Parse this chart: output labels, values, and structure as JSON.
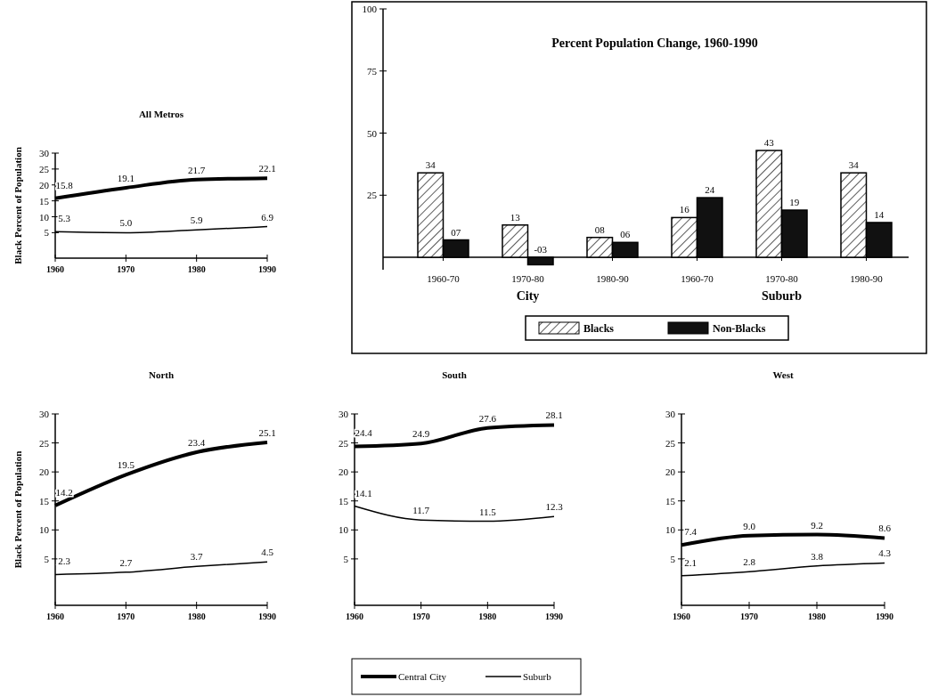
{
  "chart_data": [
    {
      "type": "line",
      "title": "All Metros",
      "ylabel": "Black Percent of Population",
      "x": [
        1960,
        1970,
        1980,
        1990
      ],
      "xlim": [
        1960,
        1990
      ],
      "xticks": [
        1960,
        1970,
        1980,
        1990
      ],
      "ylim": [
        -3,
        30
      ],
      "yticks": [
        5,
        10,
        15,
        20,
        25,
        30
      ],
      "grid": false,
      "legend": false,
      "marker": "none",
      "series": [
        {
          "color": "#000000",
          "values": [
            15.8,
            19.1,
            21.7,
            22.1
          ],
          "value_labels": [
            "15.8",
            "19.1",
            "21.7",
            "22.1"
          ]
        },
        {
          "color": "#000000",
          "values": [
            5.3,
            5.0,
            5.9,
            6.9
          ],
          "value_labels": [
            "5.3",
            "5.0",
            "5.9",
            "6.9"
          ]
        }
      ]
    },
    {
      "type": "bar",
      "title": "Percent Population Change, 1960-1990",
      "categories": [
        "1960-70",
        "1970-80",
        "1980-90",
        "1960-70",
        "1970-80",
        "1980-90"
      ],
      "annotations": [
        "City",
        "Suburb"
      ],
      "ylim": [
        -5,
        100
      ],
      "yticks": [
        25,
        50,
        75,
        100
      ],
      "grid": false,
      "legend": "bottom",
      "series": [
        {
          "name": "Blacks",
          "color": "#ffffff",
          "values": [
            34,
            13,
            8,
            16,
            43,
            34
          ],
          "value_labels": [
            "34",
            "13",
            "08",
            "16",
            "43",
            "34"
          ]
        },
        {
          "name": "Non-Blacks",
          "color": "#111111",
          "values": [
            7,
            -3,
            6,
            24,
            19,
            14
          ],
          "value_labels": [
            "07",
            "-03",
            "06",
            "24",
            "19",
            "14"
          ]
        }
      ]
    },
    {
      "type": "line",
      "title": "North",
      "ylabel": "Black Percent of Population",
      "x": [
        1960,
        1970,
        1980,
        1990
      ],
      "xlim": [
        1960,
        1990
      ],
      "xticks": [
        1960,
        1970,
        1980,
        1990
      ],
      "ylim": [
        -3,
        30
      ],
      "yticks": [
        5,
        10,
        15,
        20,
        25,
        30
      ],
      "grid": false,
      "legend": false,
      "marker": "none",
      "series": [
        {
          "color": "#000000",
          "values": [
            14.2,
            19.5,
            23.4,
            25.1
          ],
          "value_labels": [
            "14.2",
            "19.5",
            "23.4",
            "25.1"
          ]
        },
        {
          "color": "#000000",
          "values": [
            2.3,
            2.7,
            3.7,
            4.5
          ],
          "value_labels": [
            "2.3",
            "2.7",
            "3.7",
            "4.5"
          ]
        }
      ]
    },
    {
      "type": "line",
      "title": "South",
      "x": [
        1960,
        1970,
        1980,
        1990
      ],
      "xlim": [
        1960,
        1990
      ],
      "xticks": [
        1960,
        1970,
        1980,
        1990
      ],
      "ylim": [
        -3,
        30
      ],
      "yticks": [
        5,
        10,
        15,
        20,
        25,
        30
      ],
      "grid": false,
      "legend": "bottom",
      "marker": "none",
      "series": [
        {
          "name": "Central City",
          "color": "#000000",
          "values": [
            24.4,
            24.9,
            27.6,
            28.1
          ],
          "value_labels": [
            "24.4",
            "24.9",
            "27.6",
            "28.1"
          ]
        },
        {
          "name": "Suburb",
          "color": "#000000",
          "values": [
            14.1,
            11.7,
            11.5,
            12.3
          ],
          "value_labels": [
            "14.1",
            "11.7",
            "11.5",
            "12.3"
          ]
        }
      ]
    },
    {
      "type": "line",
      "title": "West",
      "x": [
        1960,
        1970,
        1980,
        1990
      ],
      "xlim": [
        1960,
        1990
      ],
      "xticks": [
        1960,
        1970,
        1980,
        1990
      ],
      "ylim": [
        -3,
        30
      ],
      "yticks": [
        5,
        10,
        15,
        20,
        25,
        30
      ],
      "grid": false,
      "legend": false,
      "marker": "none",
      "series": [
        {
          "color": "#000000",
          "values": [
            7.4,
            9.0,
            9.2,
            8.6
          ],
          "value_labels": [
            "7.4",
            "9.0",
            "9.2",
            "8.6"
          ]
        },
        {
          "color": "#000000",
          "values": [
            2.1,
            2.8,
            3.8,
            4.3
          ],
          "value_labels": [
            "2.1",
            "2.8",
            "3.8",
            "4.3"
          ]
        }
      ]
    }
  ]
}
